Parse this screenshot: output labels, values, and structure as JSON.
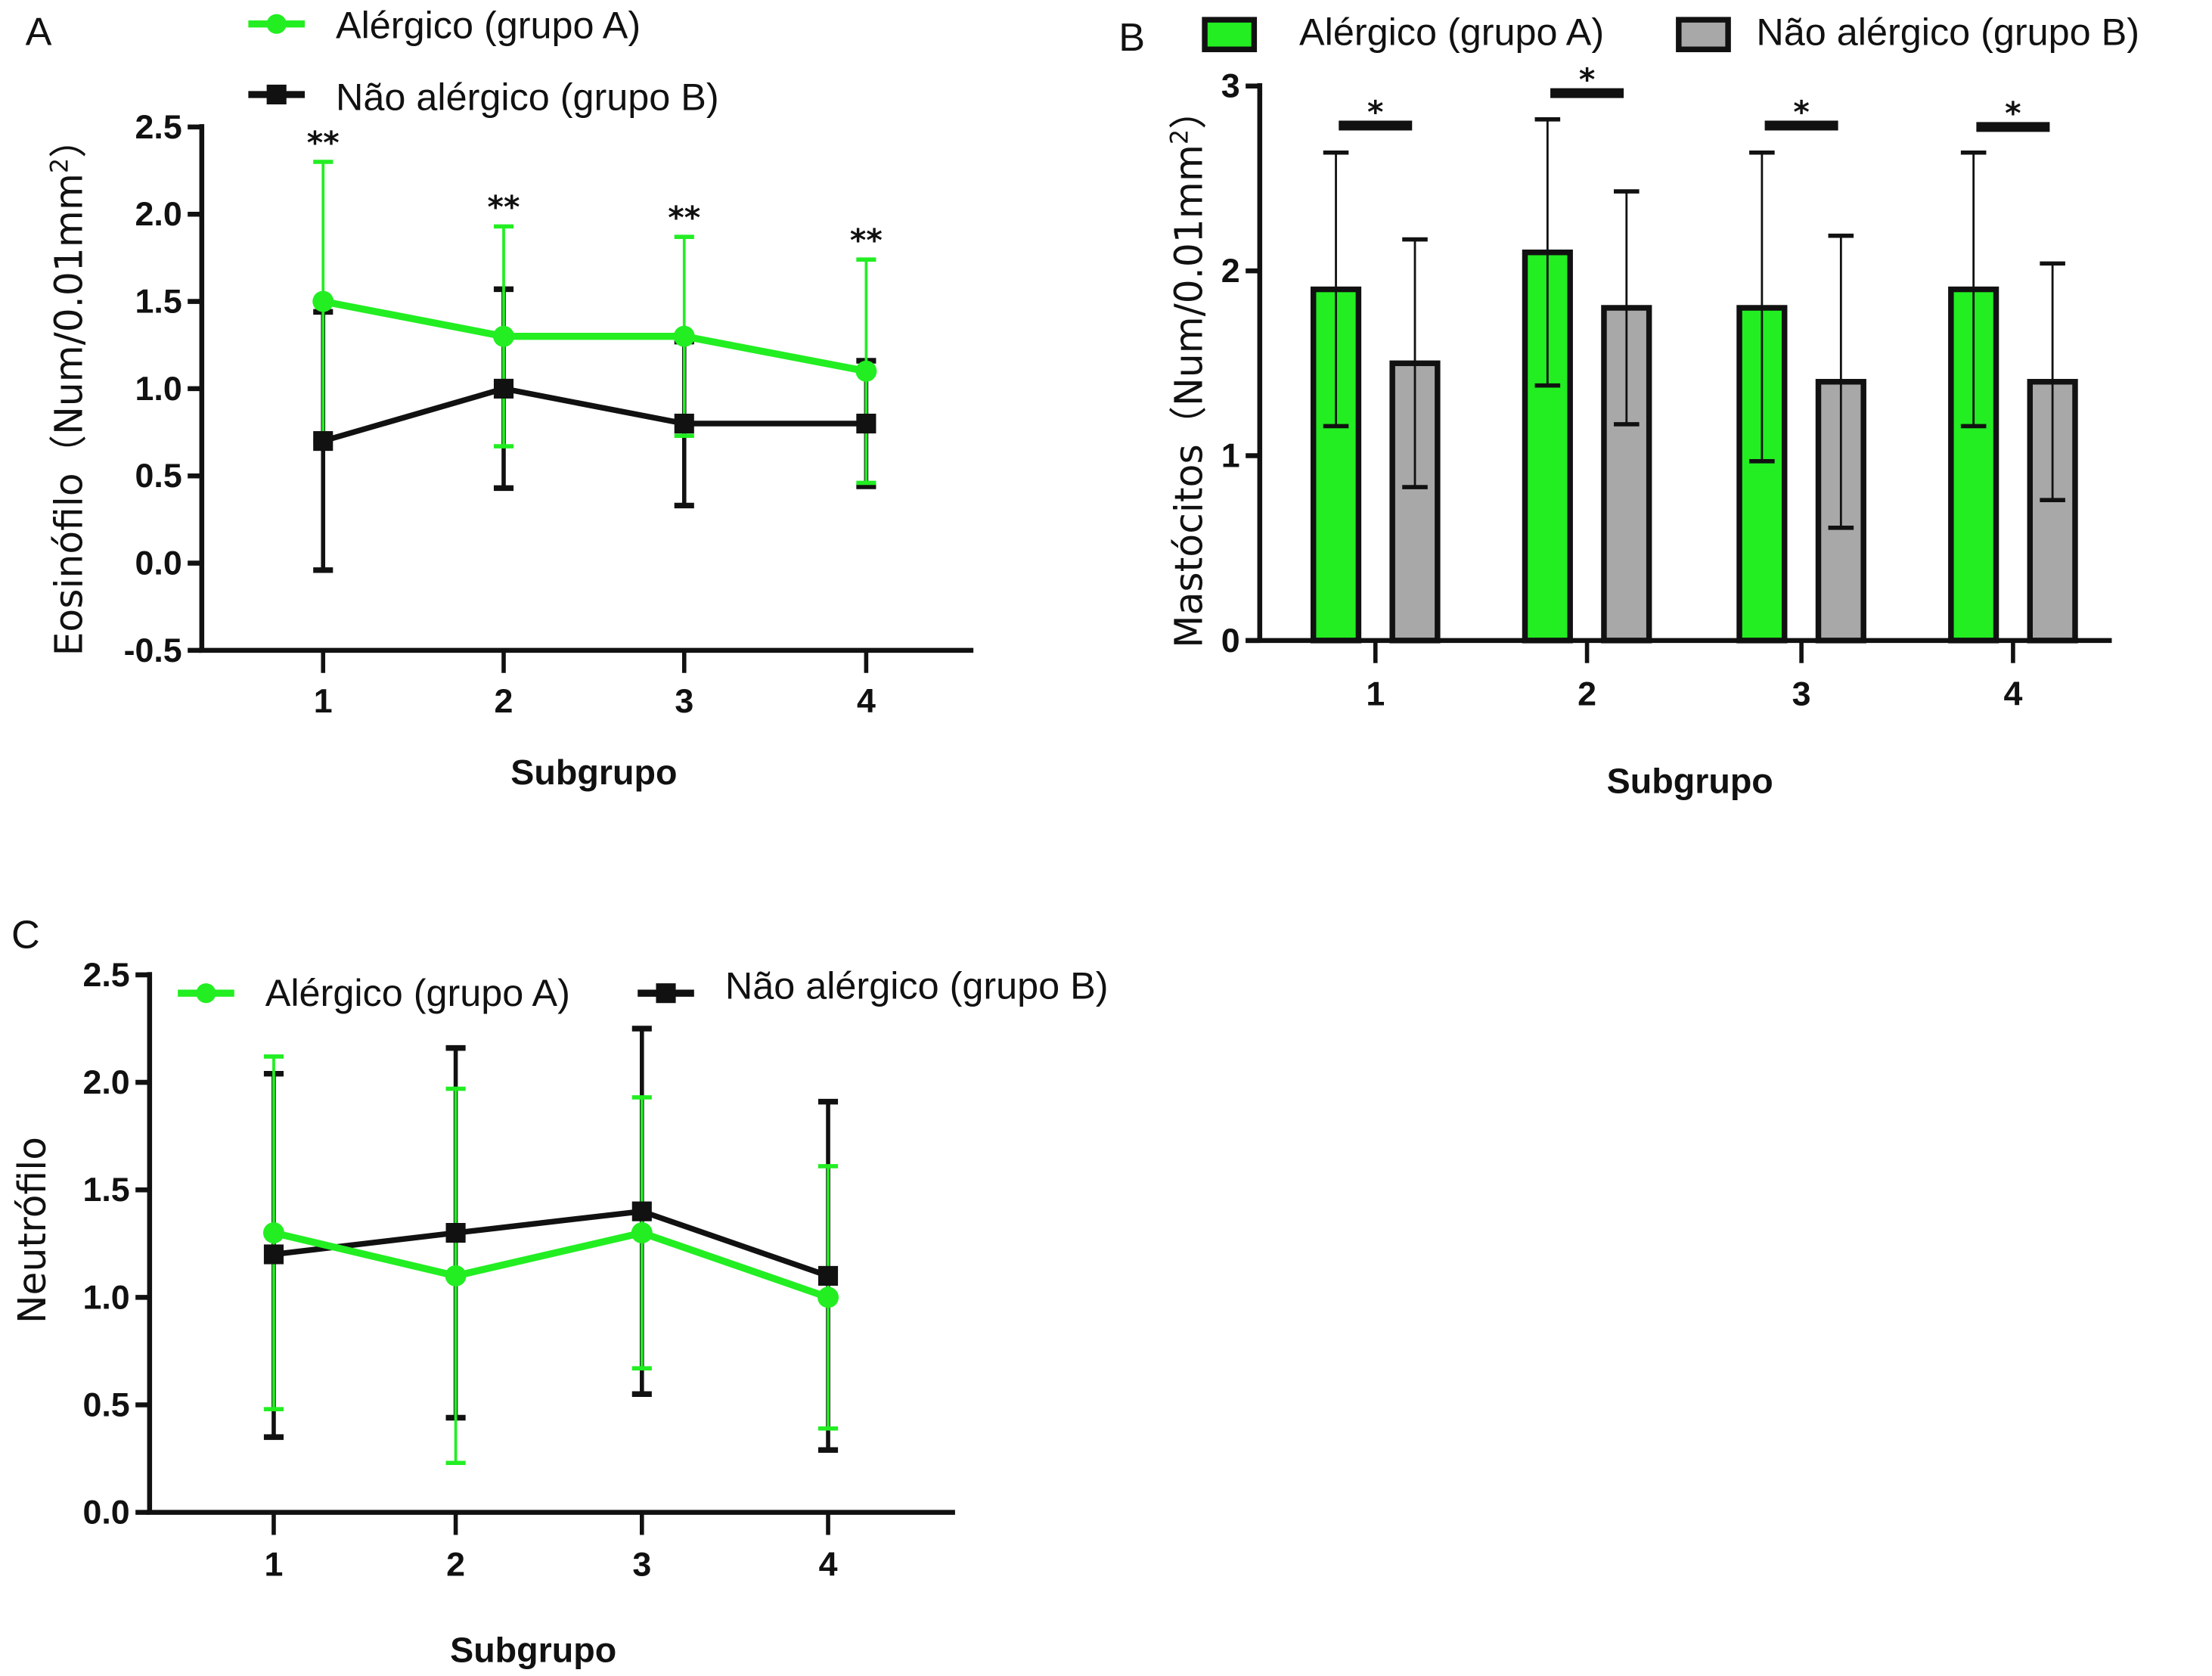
{
  "chart_data": [
    {
      "panel": "A",
      "type": "line",
      "title": "",
      "xlabel": "Subgrupo",
      "ylabel_main": "Eosinófilo（Num/0.01mm",
      "ylabel_sup": "2",
      "ylabel_end": "）",
      "categories": [
        "1",
        "2",
        "3",
        "4"
      ],
      "ylim": [
        -0.5,
        2.5
      ],
      "yticks": [
        "-0.5",
        "0.0",
        "0.5",
        "1.0",
        "1.5",
        "2.0",
        "2.5"
      ],
      "ytick_values": [
        -0.5,
        0.0,
        0.5,
        1.0,
        1.5,
        2.0,
        2.5
      ],
      "legend_position": "top",
      "series": [
        {
          "name": "Alérgico (grupo A)",
          "color": "#22ee22",
          "marker": "circle",
          "values": [
            1.5,
            1.3,
            1.3,
            1.1
          ],
          "err_upper": [
            2.3,
            1.93,
            1.87,
            1.74
          ],
          "err_lower": [
            0.7,
            0.67,
            0.73,
            0.46
          ]
        },
        {
          "name": "Não alérgico (grupo B)",
          "color": "#111111",
          "marker": "square",
          "values": [
            0.7,
            1.0,
            0.8,
            0.8
          ],
          "err_upper": [
            1.44,
            1.57,
            1.27,
            1.16
          ],
          "err_lower": [
            -0.04,
            0.43,
            0.33,
            0.44
          ]
        }
      ],
      "annotations": [
        "**",
        "**",
        "**",
        "**"
      ]
    },
    {
      "panel": "B",
      "type": "bar",
      "title": "",
      "xlabel": "Subgrupo",
      "ylabel_main": "Mastócitos（Num/0.01mm",
      "ylabel_sup": "2",
      "ylabel_end": "）",
      "categories": [
        "1",
        "2",
        "3",
        "4"
      ],
      "ylim": [
        0,
        3
      ],
      "yticks": [
        "0",
        "1",
        "2",
        "3"
      ],
      "ytick_values": [
        0,
        1,
        2,
        3
      ],
      "legend_position": "top",
      "series": [
        {
          "name": "Alérgico (grupo A)",
          "color": "#22ee22",
          "values": [
            1.9,
            2.1,
            1.8,
            1.9
          ],
          "err_upper": [
            2.64,
            2.82,
            2.64,
            2.64
          ],
          "err_lower": [
            1.16,
            1.38,
            0.97,
            1.16
          ]
        },
        {
          "name": "Não alérgico (grupo B)",
          "color": "#a8a8a8",
          "values": [
            1.5,
            1.8,
            1.4,
            1.4
          ],
          "err_upper": [
            2.17,
            2.43,
            2.19,
            2.04
          ],
          "err_lower": [
            0.83,
            1.17,
            0.61,
            0.76
          ]
        }
      ],
      "annotations": [
        "*",
        "*",
        "*",
        "*"
      ]
    },
    {
      "panel": "C",
      "type": "line",
      "title": "",
      "xlabel": "Subgrupo",
      "ylabel_main": "Neutrófilo",
      "ylabel_sup": "",
      "ylabel_end": "",
      "categories": [
        "1",
        "2",
        "3",
        "4"
      ],
      "ylim": [
        0,
        2.5
      ],
      "yticks": [
        "0.0",
        "0.5",
        "1.0",
        "1.5",
        "2.0",
        "2.5"
      ],
      "ytick_values": [
        0.0,
        0.5,
        1.0,
        1.5,
        2.0,
        2.5
      ],
      "legend_position": "top",
      "series": [
        {
          "name": "Alérgico (grupo A)",
          "color": "#22ee22",
          "marker": "circle",
          "values": [
            1.3,
            1.1,
            1.3,
            1.0
          ],
          "err_upper": [
            2.12,
            1.97,
            1.93,
            1.61
          ],
          "err_lower": [
            0.48,
            0.23,
            0.67,
            0.39
          ]
        },
        {
          "name": "Não alérgico (grupo B)",
          "color": "#111111",
          "marker": "square",
          "values": [
            1.2,
            1.3,
            1.4,
            1.1
          ],
          "err_upper": [
            2.04,
            2.16,
            2.25,
            1.91
          ],
          "err_lower": [
            0.35,
            0.44,
            0.55,
            0.29
          ]
        }
      ],
      "annotations": []
    }
  ],
  "panels": {
    "A": {
      "letter": "A",
      "legend": [
        "Alérgico (grupo A)",
        "Não alérgico (grupo B)"
      ]
    },
    "B": {
      "letter": "B",
      "legend": [
        "Alérgico (grupo A)",
        "Não alérgico (grupo B)"
      ]
    },
    "C": {
      "letter": "C",
      "legend": [
        "Alérgico (grupo A)",
        "Não alérgico (grupo B)"
      ]
    }
  }
}
